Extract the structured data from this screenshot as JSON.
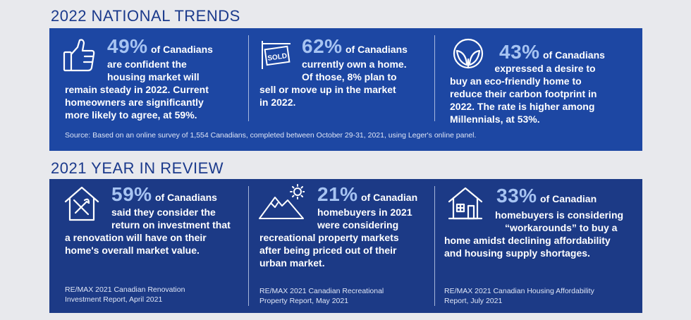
{
  "sections": {
    "national_trends_title": "2022 NATIONAL TRENDS",
    "year_review_title": "2021 YEAR IN REVIEW"
  },
  "national": {
    "stat1": {
      "icon": "thumbs-up-icon",
      "number": "49%",
      "suffix": "of Canadians",
      "lines": [
        "are confident the",
        "housing market will",
        "remain steady in 2022. Current",
        "homeowners are significantly",
        "more likely to agree, at 59%."
      ]
    },
    "stat2": {
      "icon": "sold-sign-icon",
      "icon_text": "SOLD",
      "number": "62%",
      "suffix": "of Canadians",
      "lines": [
        "currently own a home.",
        "Of those, 8% plan to",
        "sell or move up in the market",
        "in 2022."
      ]
    },
    "stat3": {
      "icon": "leaves-icon",
      "number": "43%",
      "suffix": "of Canadians",
      "lines": [
        "expressed a desire to",
        "buy an eco-friendly home to",
        "reduce their carbon footprint in",
        "2022. The rate is higher among",
        "Millennials, at 53%."
      ]
    },
    "source": "Source: Based on an online survey of 1,554 Canadians, completed between October 29-31, 2021, using Leger's online panel."
  },
  "review": {
    "stat1": {
      "icon": "house-tools-icon",
      "number": "59%",
      "suffix": "of Canadians",
      "lines": [
        "said they consider the",
        "return on investment that",
        "a renovation will have on their",
        "home's overall market value."
      ],
      "footnote": [
        "RE/MAX 2021 Canadian Renovation",
        "Investment Report, April 2021"
      ]
    },
    "stat2": {
      "icon": "mountains-sun-icon",
      "number": "21%",
      "suffix": "of Canadian",
      "lines": [
        "homebuyers in 2021",
        "were considering",
        "recreational property markets",
        "after being priced out of their",
        "urban market."
      ],
      "footnote": [
        "RE/MAX 2021 Canadian Recreational",
        "Property Report, May 2021"
      ]
    },
    "stat3": {
      "icon": "house-icon",
      "number": "33%",
      "suffix": "of Canadian",
      "lines": [
        "homebuyers is considering",
        "“workarounds” to buy a",
        "home amidst declining affordability",
        "and housing supply shortages."
      ],
      "footnote": [
        "RE/MAX 2021 Canadian Housing Affordability",
        "Report, July 2021"
      ]
    }
  },
  "colors": {
    "background": "#e8e9ed",
    "title": "#1b3a8c",
    "panel_top": "#1d47a3",
    "panel_bottom": "#1c3a86",
    "highlight_number": "#a7c4f2"
  }
}
